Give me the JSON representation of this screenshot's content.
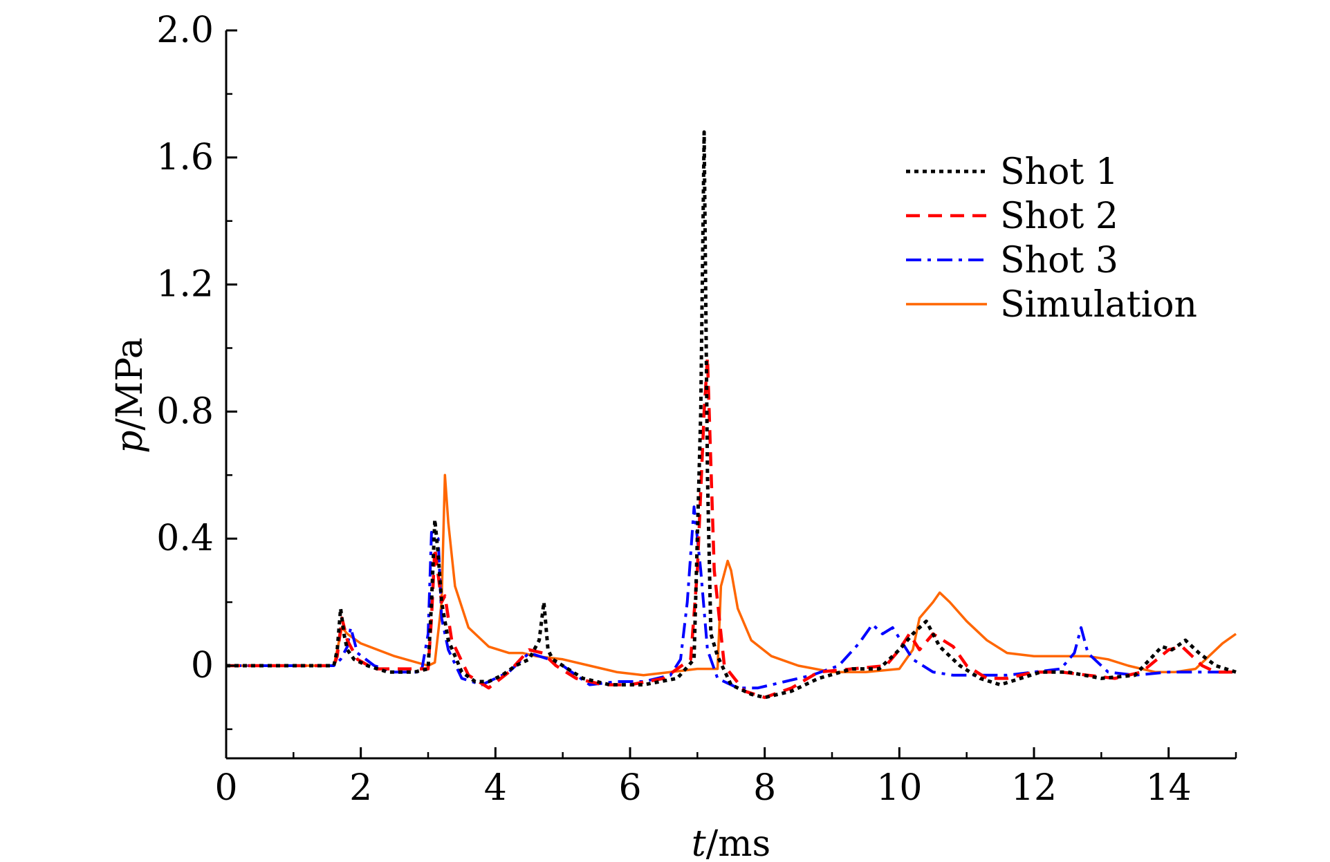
{
  "chart_data": {
    "type": "line",
    "title": "",
    "xlabel": {
      "italic": "t",
      "rest": "/ms"
    },
    "ylabel": {
      "italic": "p",
      "rest": "/MPa"
    },
    "xlim": [
      0,
      15
    ],
    "ylim": [
      -0.3,
      2.0
    ],
    "xticks": [
      0,
      2,
      4,
      6,
      8,
      10,
      12,
      14
    ],
    "xtick_labels": [
      "0",
      "2",
      "4",
      "6",
      "8",
      "10",
      "12",
      "14"
    ],
    "yticks": [
      0,
      0.4,
      0.8,
      1.2,
      1.6,
      2.0
    ],
    "ytick_labels": [
      "0",
      "0.4",
      "0.8",
      "1.2",
      "1.6",
      "2.0"
    ],
    "grid": false,
    "legend_position": "top-right",
    "series": [
      {
        "name": "Shot 1",
        "color": "#000000",
        "dash": "dotted",
        "x": [
          0,
          1.6,
          1.65,
          1.7,
          1.75,
          1.8,
          1.9,
          2.1,
          2.4,
          2.8,
          3.0,
          3.05,
          3.1,
          3.15,
          3.2,
          3.3,
          3.5,
          3.7,
          3.9,
          4.1,
          4.3,
          4.5,
          4.65,
          4.72,
          4.78,
          4.85,
          5.0,
          5.3,
          5.7,
          6.2,
          6.7,
          6.95,
          7.05,
          7.1,
          7.15,
          7.2,
          7.3,
          7.5,
          7.8,
          8.0,
          8.4,
          8.8,
          9.3,
          9.7,
          10.0,
          10.2,
          10.4,
          10.6,
          10.9,
          11.2,
          11.5,
          11.8,
          12.1,
          12.5,
          13.0,
          13.5,
          13.9,
          14.05,
          14.25,
          14.45,
          14.7,
          15.0
        ],
        "y": [
          0,
          0,
          0.05,
          0.18,
          0.1,
          0.05,
          0.02,
          0.0,
          -0.02,
          -0.02,
          -0.01,
          0.2,
          0.46,
          0.35,
          0.2,
          0.08,
          -0.02,
          -0.05,
          -0.05,
          -0.03,
          0.0,
          0.02,
          0.08,
          0.2,
          0.05,
          0.02,
          0.0,
          -0.04,
          -0.06,
          -0.06,
          -0.04,
          0.02,
          0.8,
          1.68,
          0.6,
          0.1,
          0.03,
          -0.06,
          -0.09,
          -0.1,
          -0.08,
          -0.04,
          -0.01,
          -0.01,
          0.05,
          0.1,
          0.14,
          0.06,
          0.0,
          -0.04,
          -0.06,
          -0.04,
          -0.02,
          -0.02,
          -0.04,
          -0.03,
          0.06,
          0.05,
          0.08,
          0.04,
          0.0,
          -0.02
        ]
      },
      {
        "name": "Shot 2",
        "color": "#ff0000",
        "dash": "dashed",
        "x": [
          0,
          1.6,
          1.65,
          1.72,
          1.8,
          1.95,
          2.2,
          2.6,
          3.0,
          3.05,
          3.1,
          3.2,
          3.25,
          3.35,
          3.6,
          3.9,
          4.2,
          4.5,
          4.7,
          4.9,
          5.2,
          5.6,
          6.0,
          6.5,
          6.9,
          7.0,
          7.1,
          7.15,
          7.25,
          7.4,
          7.7,
          8.0,
          8.4,
          8.8,
          9.3,
          9.8,
          10.0,
          10.15,
          10.3,
          10.5,
          10.8,
          11.0,
          11.3,
          11.6,
          12.0,
          12.4,
          12.8,
          13.2,
          13.6,
          14.0,
          14.2,
          14.5,
          14.7,
          15.0
        ],
        "y": [
          0,
          0,
          0.03,
          0.15,
          0.08,
          0.02,
          -0.01,
          -0.01,
          -0.01,
          0.15,
          0.37,
          0.2,
          0.22,
          0.08,
          -0.03,
          -0.07,
          -0.02,
          0.05,
          0.04,
          0.0,
          -0.04,
          -0.06,
          -0.06,
          -0.04,
          0.02,
          0.3,
          0.8,
          0.97,
          0.3,
          0.0,
          -0.08,
          -0.1,
          -0.07,
          -0.02,
          -0.01,
          0.0,
          0.05,
          0.1,
          0.05,
          0.1,
          0.06,
          0.0,
          -0.04,
          -0.04,
          -0.02,
          -0.02,
          -0.03,
          -0.04,
          -0.02,
          0.05,
          0.06,
          0.0,
          -0.02,
          -0.02
        ]
      },
      {
        "name": "Shot 3",
        "color": "#0000ff",
        "dash": "dashdot",
        "x": [
          0,
          1.6,
          1.7,
          1.8,
          1.85,
          1.95,
          2.2,
          2.5,
          2.9,
          3.0,
          3.05,
          3.15,
          3.2,
          3.3,
          3.5,
          3.8,
          4.2,
          4.5,
          4.8,
          5.0,
          5.4,
          5.8,
          6.2,
          6.6,
          6.75,
          6.85,
          6.95,
          7.05,
          7.15,
          7.3,
          7.6,
          7.9,
          8.3,
          8.7,
          9.1,
          9.4,
          9.6,
          9.75,
          9.9,
          10.2,
          10.5,
          10.8,
          11.2,
          11.6,
          12.0,
          12.4,
          12.6,
          12.7,
          12.8,
          13.1,
          13.5,
          14.0,
          14.4,
          14.8,
          15.0
        ],
        "y": [
          0,
          0,
          0.02,
          0.06,
          0.12,
          0.04,
          0.0,
          -0.02,
          -0.02,
          0.1,
          0.42,
          0.4,
          0.15,
          0.05,
          -0.04,
          -0.06,
          -0.02,
          0.04,
          0.02,
          0.0,
          -0.06,
          -0.05,
          -0.05,
          -0.03,
          0.02,
          0.2,
          0.5,
          0.3,
          0.05,
          -0.04,
          -0.07,
          -0.07,
          -0.05,
          -0.03,
          0.0,
          0.07,
          0.13,
          0.1,
          0.12,
          0.02,
          -0.02,
          -0.03,
          -0.03,
          -0.03,
          -0.02,
          -0.01,
          0.04,
          0.12,
          0.04,
          -0.02,
          -0.03,
          -0.02,
          -0.02,
          -0.02,
          -0.02
        ]
      },
      {
        "name": "Simulation",
        "color": "#ff6600",
        "dash": "solid",
        "x": [
          0,
          1.6,
          1.65,
          1.72,
          1.8,
          2.0,
          2.5,
          3.0,
          3.1,
          3.2,
          3.25,
          3.3,
          3.4,
          3.6,
          3.9,
          4.2,
          4.4,
          4.6,
          5.0,
          5.4,
          5.8,
          6.2,
          6.6,
          7.0,
          7.3,
          7.35,
          7.45,
          7.5,
          7.6,
          7.8,
          8.1,
          8.5,
          9.0,
          9.5,
          10.0,
          10.2,
          10.3,
          10.5,
          10.6,
          10.75,
          11.0,
          11.3,
          11.6,
          12.0,
          12.4,
          12.8,
          13.1,
          13.4,
          13.8,
          14.1,
          14.4,
          14.6,
          14.8,
          15.0
        ],
        "y": [
          0,
          0,
          0.05,
          0.12,
          0.1,
          0.07,
          0.03,
          0.0,
          0.01,
          0.2,
          0.6,
          0.45,
          0.25,
          0.12,
          0.06,
          0.04,
          0.04,
          0.03,
          0.02,
          0.0,
          -0.02,
          -0.03,
          -0.02,
          -0.01,
          -0.01,
          0.25,
          0.33,
          0.3,
          0.18,
          0.08,
          0.03,
          0.0,
          -0.02,
          -0.02,
          -0.01,
          0.05,
          0.15,
          0.2,
          0.23,
          0.2,
          0.14,
          0.08,
          0.04,
          0.03,
          0.03,
          0.03,
          0.02,
          0.0,
          -0.02,
          -0.02,
          -0.01,
          0.03,
          0.07,
          0.1
        ]
      }
    ]
  }
}
